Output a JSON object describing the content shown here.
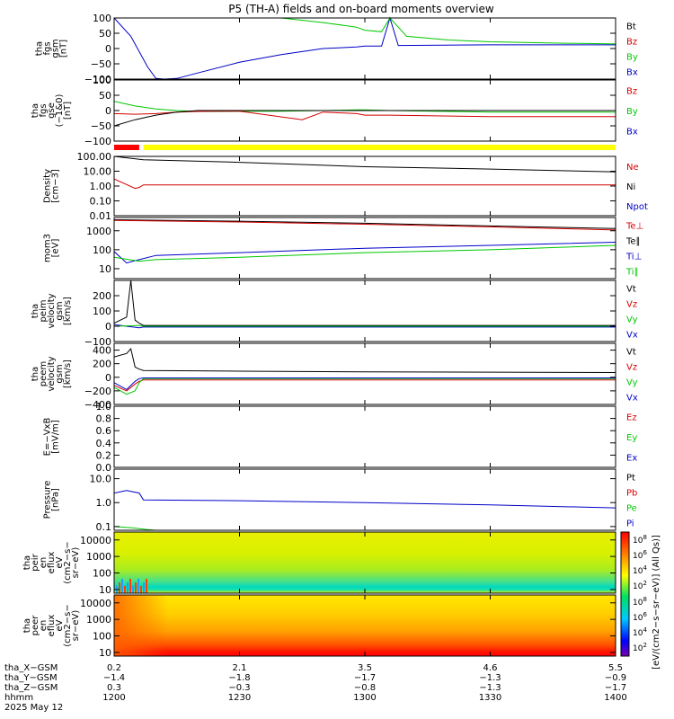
{
  "title": "P5 (TH-A) fields and on-board moments overview",
  "colors": {
    "black": "#000000",
    "red": "#d40000",
    "green": "#00c800",
    "blue": "#0000c8",
    "yellow": "#ffff00",
    "barRed": "#ff0000"
  },
  "chart_data": [
    {
      "type": "line",
      "ylabel": [
        "tha",
        "fgs",
        "gsm",
        "[nT]"
      ],
      "ylim": [
        -100,
        100
      ],
      "ticks": [
        "100",
        "50",
        "0",
        "−50",
        "−100"
      ],
      "tickValues": [
        100,
        50,
        0,
        -50,
        -100
      ],
      "legend": [
        "Bt",
        "Bz",
        "By",
        "Bx"
      ],
      "legendColors": [
        "black",
        "red",
        "green",
        "blue"
      ],
      "series": [
        {
          "color": "blue",
          "x": [
            1200,
            1204,
            1208,
            1210,
            1212,
            1215,
            1220,
            1230,
            1240,
            1250,
            1258,
            1300,
            1304,
            1306,
            1308,
            1330,
            1345,
            1400
          ],
          "values": [
            100,
            40,
            -60,
            -98,
            -100,
            -98,
            -80,
            -45,
            -20,
            0,
            5,
            8,
            8,
            100,
            10,
            12,
            12,
            12
          ]
        },
        {
          "color": "green",
          "x": [
            1240,
            1250,
            1258,
            1300,
            1304,
            1306,
            1310,
            1320,
            1330,
            1345,
            1400
          ],
          "values": [
            100,
            85,
            70,
            60,
            55,
            100,
            40,
            28,
            22,
            18,
            15
          ]
        },
        {
          "color": "black",
          "x": [
            1258,
            1300,
            1303,
            1304,
            1306,
            1400
          ],
          "values": [
            100,
            100,
            100,
            100,
            100,
            100
          ]
        }
      ]
    },
    {
      "type": "line",
      "ylabel": [
        "tha",
        "fgs",
        "gse",
        "(−1&0)",
        "[nT]"
      ],
      "ylim": [
        -100,
        100
      ],
      "ticks": [
        "100",
        "50",
        "0",
        "−50",
        "−100"
      ],
      "tickValues": [
        100,
        50,
        0,
        -50,
        -100
      ],
      "legend": [
        "Bz",
        "By",
        "Bx"
      ],
      "legendColors": [
        "red",
        "green",
        "blue"
      ],
      "series": [
        {
          "color": "green",
          "x": [
            1200,
            1205,
            1210,
            1215,
            1220,
            1225,
            1230,
            1240,
            1250,
            1258,
            1300,
            1306,
            1330,
            1400
          ],
          "values": [
            30,
            15,
            5,
            0,
            -3,
            -3,
            -2,
            -2,
            0,
            2,
            2,
            0,
            -5,
            -5
          ]
        },
        {
          "color": "red",
          "x": [
            1200,
            1205,
            1210,
            1215,
            1220,
            1225,
            1230,
            1245,
            1250,
            1258,
            1300,
            1306,
            1330,
            1400
          ],
          "values": [
            -10,
            -12,
            -10,
            -5,
            -3,
            -2,
            -2,
            -30,
            -5,
            -10,
            -15,
            -15,
            -20,
            -20
          ]
        },
        {
          "color": "black",
          "x": [
            1200,
            1205,
            1210,
            1215,
            1220,
            1225,
            1230,
            1245,
            1250,
            1258,
            1300,
            1306,
            1330,
            1400
          ],
          "values": [
            -50,
            -30,
            -15,
            -5,
            0,
            0,
            0,
            0,
            0,
            0,
            0,
            0,
            0,
            0
          ]
        }
      ]
    },
    {
      "type": "heatmap",
      "role": "mode-bar",
      "segments": [
        {
          "from": 1200,
          "to": 1206,
          "color": "barRed"
        },
        {
          "from": 1207,
          "to": 1400,
          "color": "yellow"
        }
      ]
    },
    {
      "type": "line",
      "ylabel": [
        "Density",
        "[cm−3]"
      ],
      "scale": "log",
      "ylim": [
        0.01,
        100
      ],
      "ticks": [
        "100.00",
        "10.00",
        "1.00",
        "0.10",
        "0.01"
      ],
      "tickValues": [
        100,
        10,
        1,
        0.1,
        0.01
      ],
      "legend": [
        "Ne",
        "Ni",
        "Npot"
      ],
      "legendColors": [
        "red",
        "black",
        "blue"
      ],
      "series": [
        {
          "color": "black",
          "x": [
            1200,
            1207,
            1230,
            1300,
            1330,
            1400
          ],
          "values": [
            100,
            60,
            40,
            20,
            14,
            9
          ]
        },
        {
          "color": "red",
          "x": [
            1200,
            1205,
            1206,
            1207,
            1230,
            1300,
            1400
          ],
          "values": [
            3,
            0.7,
            0.8,
            1.2,
            1.2,
            1.2,
            1.2
          ]
        }
      ]
    },
    {
      "type": "line",
      "ylabel": [
        "mom3",
        "[eV]"
      ],
      "scale": "log",
      "ylim": [
        3,
        5000
      ],
      "ticks": [
        "1000",
        "100",
        "10"
      ],
      "tickValues": [
        1000,
        100,
        10
      ],
      "legend": [
        "Te⊥",
        "Te∥",
        "Ti⊥",
        "Ti∥"
      ],
      "legendColors": [
        "red",
        "black",
        "blue",
        "green"
      ],
      "series": [
        {
          "color": "black",
          "x": [
            1200,
            1230,
            1300,
            1330,
            1400
          ],
          "values": [
            3800,
            3200,
            2500,
            1800,
            1300
          ]
        },
        {
          "color": "red",
          "x": [
            1200,
            1230,
            1300,
            1330,
            1400
          ],
          "values": [
            3500,
            2900,
            2200,
            1600,
            1100
          ]
        },
        {
          "color": "blue",
          "x": [
            1200,
            1203,
            1206,
            1210,
            1230,
            1300,
            1330,
            1400
          ],
          "values": [
            80,
            20,
            30,
            50,
            70,
            120,
            170,
            250
          ]
        },
        {
          "color": "green",
          "x": [
            1200,
            1206,
            1210,
            1230,
            1300,
            1330,
            1400
          ],
          "values": [
            40,
            25,
            30,
            40,
            70,
            100,
            170
          ]
        }
      ]
    },
    {
      "type": "line",
      "ylabel": [
        "tha",
        "peim",
        "velocity",
        "gsm",
        "[km/s]"
      ],
      "ylim": [
        -100,
        300
      ],
      "ticks": [
        "200",
        "100",
        "0",
        "−100"
      ],
      "tickValues": [
        200,
        100,
        0,
        -100
      ],
      "legend": [
        "Vt",
        "Vz",
        "Vy",
        "Vx"
      ],
      "legendColors": [
        "black",
        "red",
        "green",
        "blue"
      ],
      "series": [
        {
          "color": "black",
          "x": [
            1200,
            1203,
            1204,
            1205,
            1206,
            1207,
            1230,
            1300,
            1400
          ],
          "values": [
            20,
            60,
            300,
            40,
            20,
            5,
            5,
            5,
            5
          ]
        },
        {
          "color": "blue",
          "x": [
            1200,
            1206,
            1207,
            1230,
            1300,
            1400
          ],
          "values": [
            10,
            -10,
            -5,
            -5,
            -5,
            -5
          ]
        },
        {
          "color": "green",
          "x": [
            1200,
            1206,
            1207,
            1230,
            1300,
            1400
          ],
          "values": [
            0,
            5,
            0,
            0,
            0,
            0
          ]
        }
      ]
    },
    {
      "type": "line",
      "ylabel": [
        "tha",
        "peem",
        "velocity",
        "gsm",
        "[km/s]"
      ],
      "ylim": [
        -400,
        500
      ],
      "ticks": [
        "400",
        "200",
        "0",
        "−200",
        "−400"
      ],
      "tickValues": [
        400,
        200,
        0,
        -200,
        -400
      ],
      "legend": [
        "Vt",
        "Vz",
        "Vy",
        "Vx"
      ],
      "legendColors": [
        "black",
        "red",
        "green",
        "blue"
      ],
      "series": [
        {
          "color": "black",
          "x": [
            1200,
            1203,
            1204,
            1205,
            1206,
            1207,
            1230,
            1300,
            1400
          ],
          "values": [
            300,
            350,
            420,
            150,
            120,
            100,
            90,
            80,
            70
          ]
        },
        {
          "color": "red",
          "x": [
            1200,
            1203,
            1205,
            1206,
            1207,
            1230,
            1300,
            1400
          ],
          "values": [
            -120,
            -200,
            -100,
            -60,
            -40,
            -40,
            -40,
            -40
          ]
        },
        {
          "color": "green",
          "x": [
            1200,
            1203,
            1205,
            1206,
            1207,
            1230,
            1300,
            1400
          ],
          "values": [
            -150,
            -250,
            -200,
            -80,
            -20,
            -20,
            -20,
            -20
          ]
        },
        {
          "color": "blue",
          "x": [
            1200,
            1203,
            1205,
            1206,
            1207,
            1230,
            1300,
            1400
          ],
          "values": [
            -80,
            -180,
            -60,
            -20,
            -10,
            -10,
            -10,
            -10
          ]
        }
      ]
    },
    {
      "type": "line",
      "ylabel": [
        "E=−VxB",
        "[mV/m]"
      ],
      "ylim": [
        0,
        1
      ],
      "ticks": [
        "1.0",
        "0.8",
        "0.6",
        "0.4",
        "0.2",
        "0.0"
      ],
      "tickValues": [
        1,
        0.8,
        0.6,
        0.4,
        0.2,
        0
      ],
      "legend": [
        "Ez",
        "Ey",
        "Ex"
      ],
      "legendColors": [
        "red",
        "green",
        "blue"
      ],
      "series": []
    },
    {
      "type": "line",
      "ylabel": [
        "Pressure",
        "[nPa]"
      ],
      "scale": "log",
      "ylim": [
        0.07,
        25
      ],
      "ticks": [
        "10.0",
        "1.0",
        "0.1"
      ],
      "tickValues": [
        10,
        1,
        0.1
      ],
      "legend": [
        "Pt",
        "Pb",
        "Pe",
        "Pi"
      ],
      "legendColors": [
        "black",
        "red",
        "green",
        "blue"
      ],
      "series": [
        {
          "color": "blue",
          "x": [
            1200,
            1203,
            1206,
            1207,
            1230,
            1300,
            1330,
            1400
          ],
          "values": [
            2.5,
            3.2,
            2.5,
            1.3,
            1.2,
            1.0,
            0.8,
            0.6
          ]
        },
        {
          "color": "green",
          "x": [
            1200,
            1204,
            1208,
            1210
          ],
          "values": [
            0.1,
            0.09,
            0.075,
            0.07
          ]
        }
      ]
    },
    {
      "type": "heatmap",
      "role": "spectrogram",
      "ylabel": [
        "tha",
        "peir",
        "en",
        "eflux",
        "eV",
        "(cm2−s−",
        "sr−eV)"
      ],
      "scale": "log",
      "ylim": [
        6,
        30000
      ],
      "ticks": [
        "10000",
        "1000",
        "100",
        "10"
      ],
      "tickValues": [
        10000,
        1000,
        100,
        10
      ]
    },
    {
      "type": "heatmap",
      "role": "spectrogram",
      "ylabel": [
        "tha",
        "peer",
        "en",
        "eflux",
        "eV",
        "(cm2−s−",
        "sr−eV)"
      ],
      "scale": "log",
      "ylim": [
        6,
        30000
      ],
      "ticks": [
        "10000",
        "1000",
        "100",
        "10"
      ],
      "tickValues": [
        10000,
        1000,
        100,
        10
      ]
    }
  ],
  "colorbar": {
    "ticks": [
      "10^8",
      "10^6",
      "10^4",
      "10^2"
    ],
    "label": "[eV/(cm2−s−sr−eV)] (All Qs)]"
  },
  "time_axis": {
    "x": [
      1200,
      1230,
      1300,
      1330,
      1400
    ],
    "xlim": [
      1200,
      1400
    ],
    "rows": [
      {
        "name": "tha_X−GSM",
        "values": [
          "0.2",
          "2.1",
          "3.5",
          "4.6",
          "5.5"
        ]
      },
      {
        "name": "tha_Y−GSM",
        "values": [
          "−1.4",
          "−1.8",
          "−1.7",
          "−1.3",
          "−0.9"
        ]
      },
      {
        "name": "tha_Z−GSM",
        "values": [
          "0.3",
          "−0.3",
          "−0.8",
          "−1.3",
          "−1.7"
        ]
      },
      {
        "name": "hhmm",
        "values": [
          "1200",
          "1230",
          "1300",
          "1330",
          "1400"
        ]
      }
    ],
    "date": "2025 May 12"
  }
}
